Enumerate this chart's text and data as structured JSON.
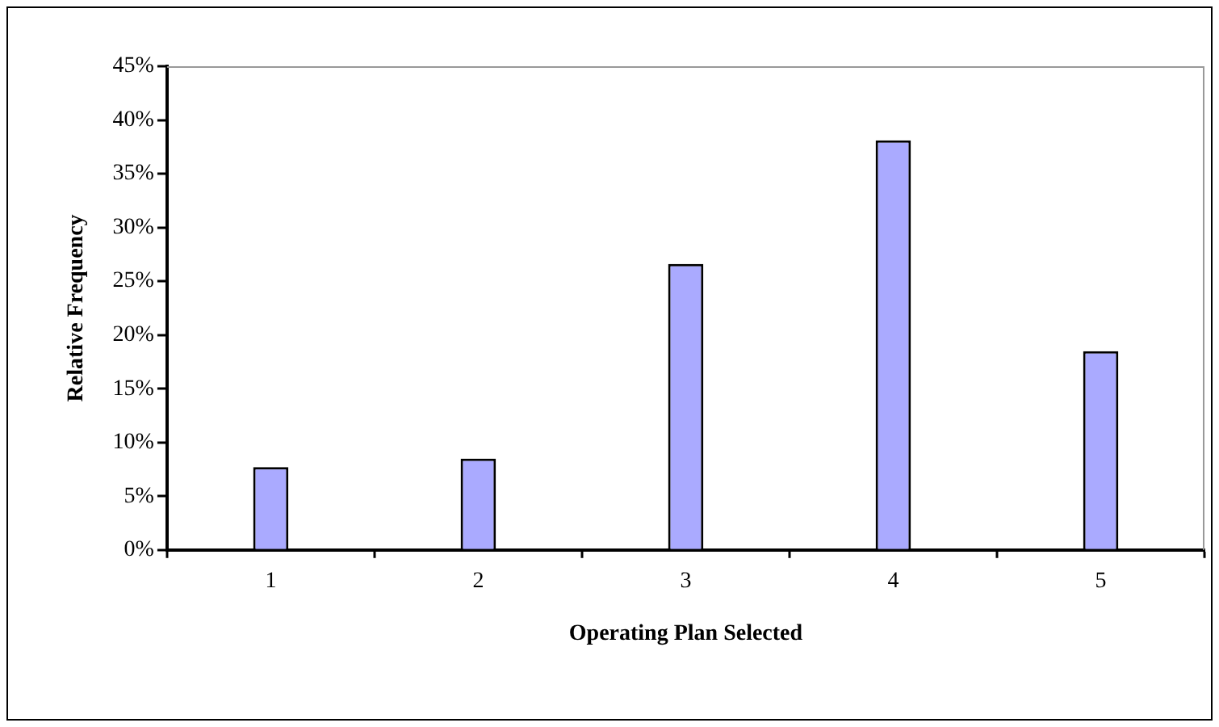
{
  "chart_data": {
    "type": "bar",
    "xlabel": "Operating Plan Selected",
    "ylabel": "Relative Frequency",
    "categories": [
      "1",
      "2",
      "3",
      "4",
      "5"
    ],
    "values": [
      7.7,
      8.5,
      26.6,
      38.1,
      18.5
    ],
    "color": "#aaaaff",
    "ylim": [
      0,
      45
    ],
    "yticks": [
      {
        "value": 0,
        "label": "0%"
      },
      {
        "value": 5,
        "label": "5%"
      },
      {
        "value": 10,
        "label": "10%"
      },
      {
        "value": 15,
        "label": "15%"
      },
      {
        "value": 20,
        "label": "20%"
      },
      {
        "value": 25,
        "label": "25%"
      },
      {
        "value": 30,
        "label": "30%"
      },
      {
        "value": 35,
        "label": "35%"
      },
      {
        "value": 40,
        "label": "40%"
      },
      {
        "value": 45,
        "label": "45%"
      }
    ],
    "grid": false,
    "legend": false
  }
}
